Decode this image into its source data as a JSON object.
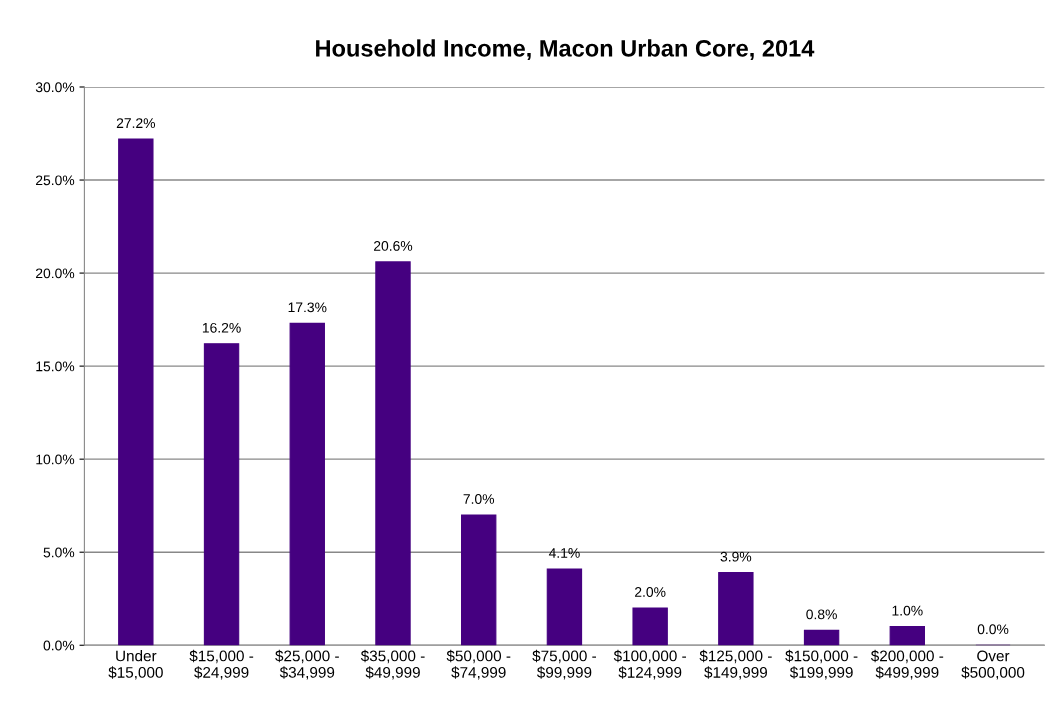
{
  "chart_data": {
    "type": "bar",
    "title": "Household Income, Macon Urban Core, 2014",
    "categories": [
      "Under\n$15,000",
      "$15,000 -\n$24,999",
      "$25,000 -\n$34,999",
      "$35,000 -\n$49,999",
      "$50,000 -\n$74,999",
      "$75,000 -\n$99,999",
      "$100,000 -\n$124,999",
      "$125,000 -\n$149,999",
      "$150,000 -\n$199,999",
      "$200,000 -\n$499,999",
      "Over\n$500,000"
    ],
    "values": [
      27.2,
      16.2,
      17.3,
      20.6,
      7.0,
      4.1,
      2.0,
      3.9,
      0.8,
      1.0,
      0.0
    ],
    "value_labels": [
      "27.2%",
      "16.2%",
      "17.3%",
      "20.6%",
      "7.0%",
      "4.1%",
      "2.0%",
      "3.9%",
      "0.8%",
      "1.0%",
      "0.0%"
    ],
    "color": "#450080",
    "ylim": [
      0,
      30
    ],
    "yticks": [
      {
        "value": 0,
        "label": "0.0%"
      },
      {
        "value": 5,
        "label": "5.0%"
      },
      {
        "value": 10,
        "label": "10.0%"
      },
      {
        "value": 15,
        "label": "15.0%"
      },
      {
        "value": 20,
        "label": "20.0%"
      },
      {
        "value": 25,
        "label": "25.0%"
      },
      {
        "value": 30,
        "label": "30.0%"
      }
    ],
    "grid": "y"
  }
}
